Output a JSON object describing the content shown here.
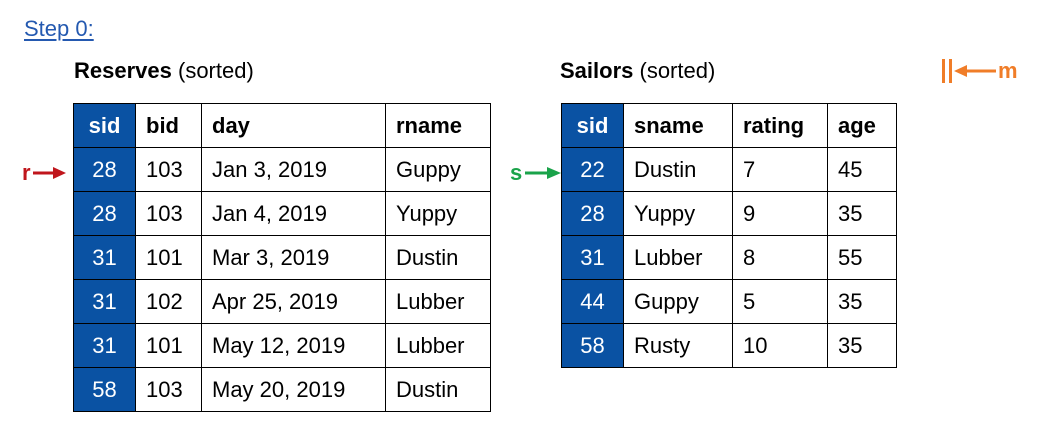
{
  "step_title": "Step 0:",
  "reserves": {
    "caption_bold": "Reserves",
    "caption_rest": " (sorted)",
    "headers": [
      "sid",
      "bid",
      "day",
      "rname"
    ],
    "rows": [
      [
        "28",
        "103",
        "Jan 3, 2019",
        "Guppy"
      ],
      [
        "28",
        "103",
        "Jan 4, 2019",
        "Yuppy"
      ],
      [
        "31",
        "101",
        "Mar 3, 2019",
        "Dustin"
      ],
      [
        "31",
        "102",
        "Apr 25, 2019",
        "Lubber"
      ],
      [
        "31",
        "101",
        "May 12, 2019",
        "Lubber"
      ],
      [
        "58",
        "103",
        "May 20, 2019",
        "Dustin"
      ]
    ]
  },
  "sailors": {
    "caption_bold": "Sailors",
    "caption_rest": " (sorted)",
    "headers": [
      "sid",
      "sname",
      "rating",
      "age"
    ],
    "rows": [
      [
        "22",
        "Dustin",
        "7",
        "45"
      ],
      [
        "28",
        "Yuppy",
        "9",
        "35"
      ],
      [
        "31",
        "Lubber",
        "8",
        "55"
      ],
      [
        "44",
        "Guppy",
        "5",
        "35"
      ],
      [
        "58",
        "Rusty",
        "10",
        "35"
      ]
    ]
  },
  "pointers": {
    "r_label": "r",
    "s_label": "s",
    "m_label": "m",
    "r_color": "#c0161c",
    "s_color": "#1aa34a",
    "m_color": "#f07d28"
  },
  "colors": {
    "key_column": "#0a52a3",
    "step_title": "#2459b0"
  }
}
